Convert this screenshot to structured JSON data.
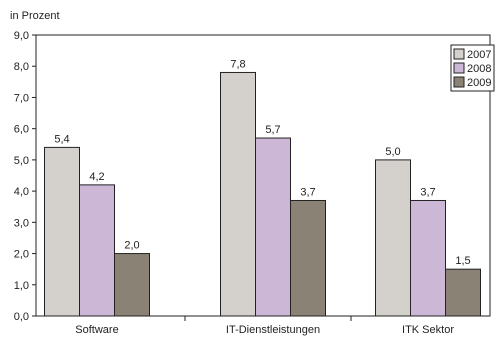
{
  "chart_data": {
    "type": "bar",
    "ylabel": "in Prozent",
    "categories": [
      "Software",
      "IT-Dienstleistungen",
      "ITK Sektor"
    ],
    "series": [
      {
        "name": "2007",
        "values": [
          5.4,
          7.8,
          5.0
        ],
        "labels": [
          "5,4",
          "7,8",
          "5,0"
        ],
        "color": "#d4d0cc"
      },
      {
        "name": "2008",
        "values": [
          4.2,
          5.7,
          3.7
        ],
        "labels": [
          "4,2",
          "5,7",
          "3,7"
        ],
        "color": "#ccb8d6"
      },
      {
        "name": "2009",
        "values": [
          2.0,
          3.7,
          1.5
        ],
        "labels": [
          "2,0",
          "3,7",
          "1,5"
        ],
        "color": "#8b8276"
      }
    ],
    "ylim": [
      0,
      9
    ],
    "yticks": [
      0,
      1,
      2,
      3,
      4,
      5,
      6,
      7,
      8,
      9
    ],
    "ytick_labels": [
      "0,0",
      "1,0",
      "2,0",
      "3,0",
      "4,0",
      "5,0",
      "6,0",
      "7,0",
      "8,0",
      "9,0"
    ],
    "grid": false,
    "legend_position": "top-right"
  }
}
